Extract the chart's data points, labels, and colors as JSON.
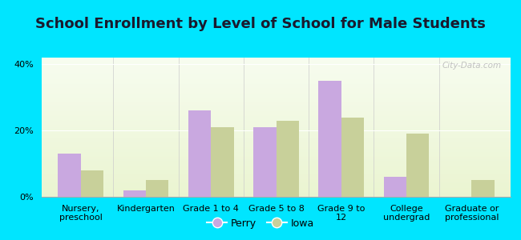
{
  "title": "School Enrollment by Level of School for Male Students",
  "categories": [
    "Nursery,\npreschool",
    "Kindergarten",
    "Grade 1 to 4",
    "Grade 5 to 8",
    "Grade 9 to\n12",
    "College\nundergrad",
    "Graduate or\nprofessional"
  ],
  "perry_values": [
    13,
    2,
    26,
    21,
    35,
    6,
    0
  ],
  "iowa_values": [
    8,
    5,
    21,
    23,
    24,
    19,
    5
  ],
  "perry_color": "#c9a8e0",
  "iowa_color": "#c8d09a",
  "background_outer": "#00e5ff",
  "ylabel": "",
  "ylim": [
    0,
    42
  ],
  "yticks": [
    0,
    20,
    40
  ],
  "ytick_labels": [
    "0%",
    "20%",
    "40%"
  ],
  "bar_width": 0.35,
  "legend_labels": [
    "Perry",
    "Iowa"
  ],
  "watermark": "City-Data.com",
  "title_fontsize": 13,
  "tick_fontsize": 8,
  "legend_fontsize": 9
}
